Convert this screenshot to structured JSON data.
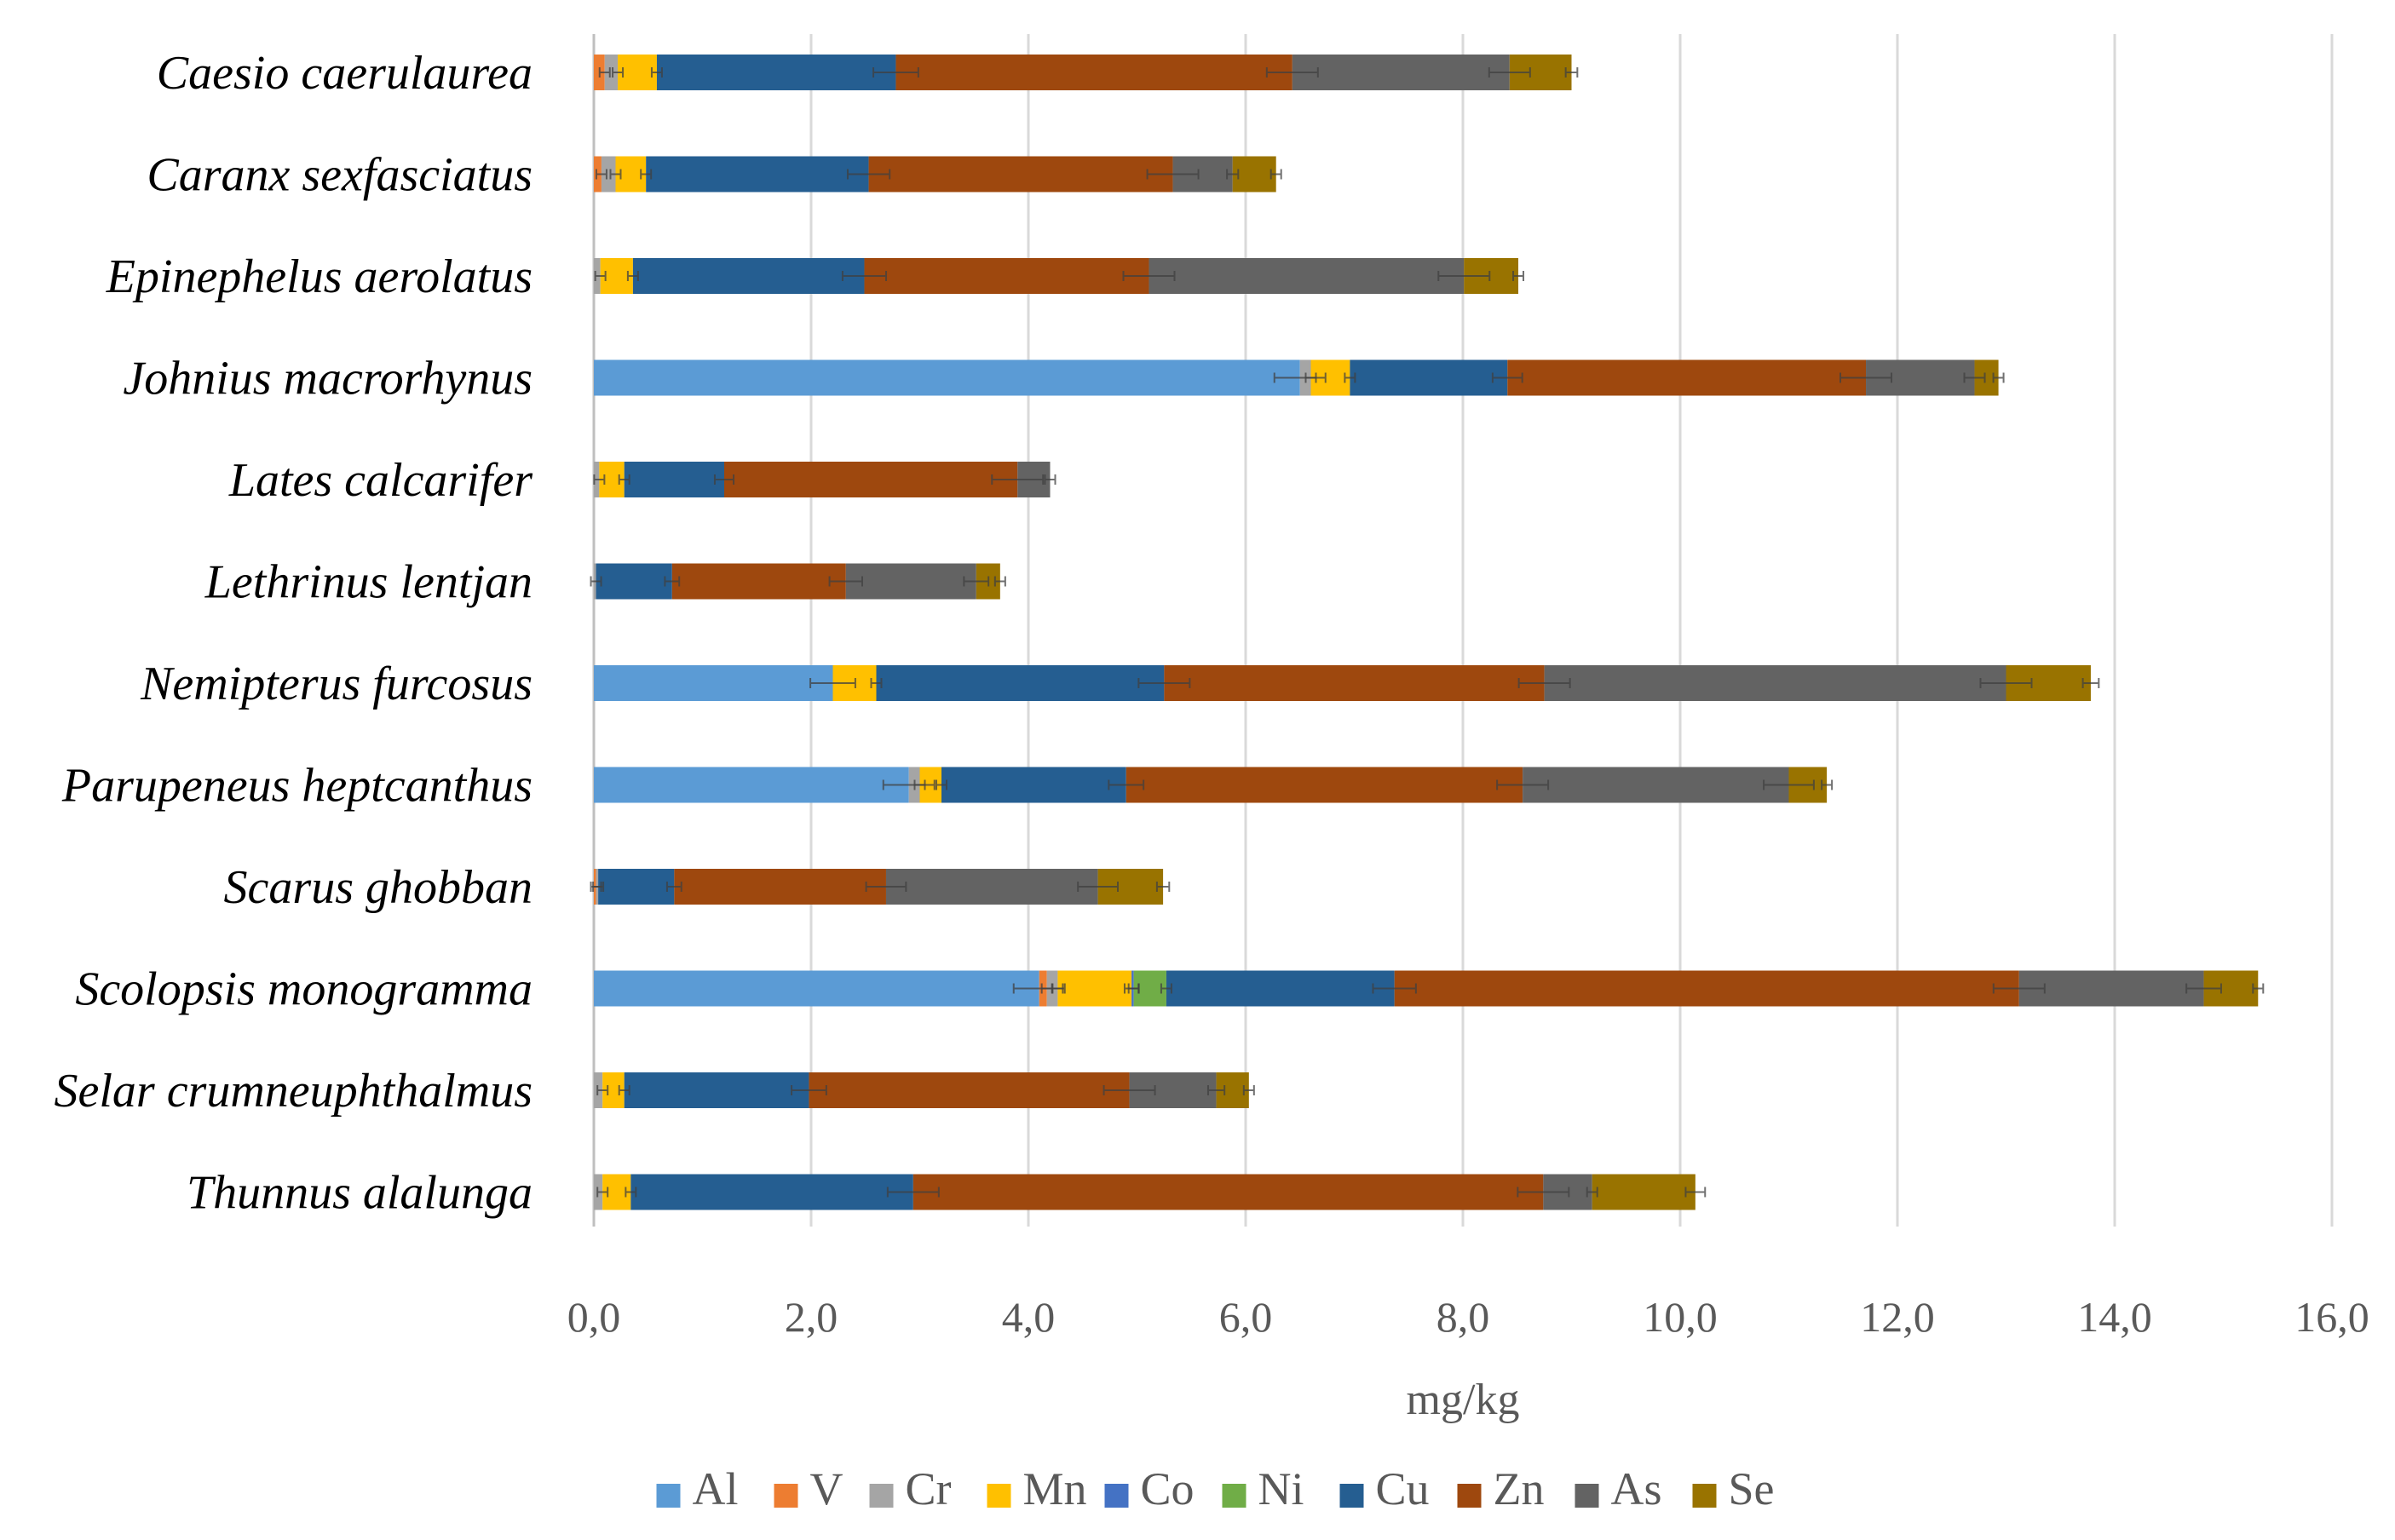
{
  "chart_data": {
    "type": "bar",
    "orientation": "horizontal",
    "stacked": true,
    "title": "",
    "xlabel": "mg/kg",
    "ylabel": "",
    "xlim": [
      0,
      16
    ],
    "x_ticks": [
      "0,0",
      "2,0",
      "4,0",
      "6,0",
      "8,0",
      "10,0",
      "12,0",
      "14,0",
      "16,0"
    ],
    "grid": "vertical",
    "legend_position": "bottom",
    "categories": [
      "Caesio caerulaurea",
      "Caranx sexfasciatus",
      "Epinephelus aerolatus",
      "Johnius macrorhynus",
      "Lates calcarifer",
      "Lethrinus lentjan",
      "Nemipterus furcosus",
      "Parupeneus heptcanthus",
      "Scarus ghobban",
      "Scolopsis monogramma",
      "Selar crumneuphthalmus",
      "Thunnus alalunga"
    ],
    "series": [
      {
        "name": "Al",
        "color": "#5B9BD5",
        "values": [
          0,
          0,
          0,
          6.5,
          0,
          0,
          2.2,
          2.9,
          0,
          4.1,
          0,
          0
        ]
      },
      {
        "name": "V",
        "color": "#ED7D31",
        "values": [
          0.1,
          0.07,
          0,
          0,
          0,
          0,
          0,
          0,
          0.02,
          0.07,
          0,
          0
        ]
      },
      {
        "name": "Cr",
        "color": "#A5A5A5",
        "values": [
          0.12,
          0.13,
          0.06,
          0.1,
          0.05,
          0.02,
          0,
          0.1,
          0.02,
          0.1,
          0.08,
          0.08
        ]
      },
      {
        "name": "Mn",
        "color": "#FFC000",
        "values": [
          0.36,
          0.28,
          0.3,
          0.36,
          0.23,
          0,
          0.4,
          0.2,
          0,
          0.68,
          0.2,
          0.26
        ]
      },
      {
        "name": "Co",
        "color": "#4472C4",
        "values": [
          0,
          0,
          0,
          0,
          0,
          0,
          0,
          0,
          0,
          0.02,
          0,
          0
        ]
      },
      {
        "name": "Ni",
        "color": "#70AD47",
        "values": [
          0,
          0,
          0,
          0,
          0,
          0,
          0,
          0,
          0,
          0.3,
          0,
          0
        ]
      },
      {
        "name": "Cu",
        "color": "#255E91",
        "values": [
          2.2,
          2.05,
          2.13,
          1.45,
          0.92,
          0.7,
          2.65,
          1.7,
          0.7,
          2.1,
          1.7,
          2.6
        ]
      },
      {
        "name": "Zn",
        "color": "#9E480E",
        "values": [
          3.65,
          2.8,
          2.62,
          3.3,
          2.7,
          1.6,
          3.5,
          3.65,
          1.95,
          5.75,
          2.95,
          5.8
        ]
      },
      {
        "name": "As",
        "color": "#636363",
        "values": [
          2.0,
          0.55,
          2.9,
          1.0,
          0.3,
          1.2,
          4.25,
          2.45,
          1.95,
          1.7,
          0.8,
          0.45
        ]
      },
      {
        "name": "Se",
        "color": "#997300",
        "values": [
          0.57,
          0.4,
          0.5,
          0.22,
          0,
          0.22,
          0.78,
          0.35,
          0.6,
          0.5,
          0.3,
          0.95
        ]
      }
    ]
  }
}
